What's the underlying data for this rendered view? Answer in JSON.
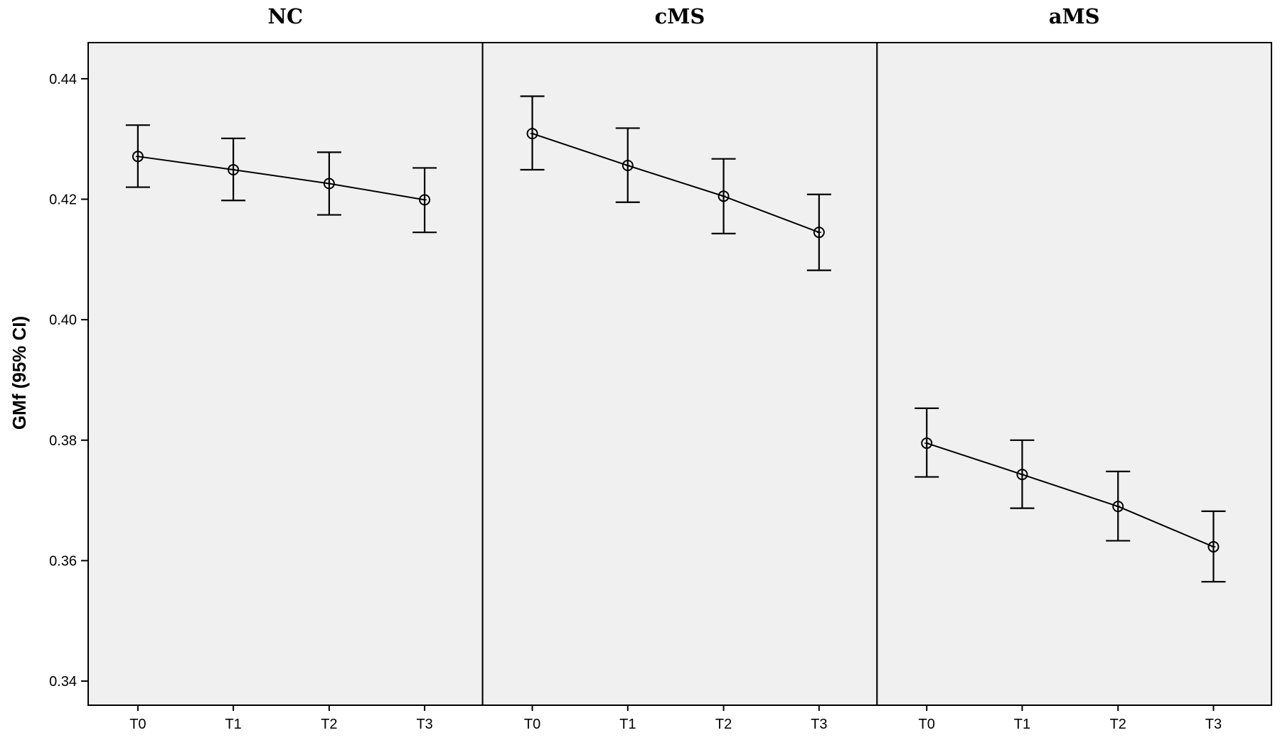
{
  "chart_data": {
    "type": "line",
    "ylabel": "GMf (95% CI)",
    "xlabel": "",
    "ylim": [
      0.336,
      0.446
    ],
    "yticks": [
      0.34,
      0.36,
      0.38,
      0.4,
      0.42,
      0.44
    ],
    "ytick_labels": [
      "0.34",
      "0.36",
      "0.38",
      "0.40",
      "0.42",
      "0.44"
    ],
    "categories": [
      "T0",
      "T1",
      "T2",
      "T3"
    ],
    "grid": false,
    "error_bars": "95% CI",
    "panels": [
      {
        "title": "NC",
        "values": [
          0.4271,
          0.4249,
          0.4226,
          0.4199
        ],
        "ci_low": [
          0.422,
          0.4198,
          0.4174,
          0.4145
        ],
        "ci_high": [
          0.4323,
          0.4301,
          0.4278,
          0.4252
        ]
      },
      {
        "title": "cMS",
        "values": [
          0.4309,
          0.4256,
          0.4205,
          0.4145
        ],
        "ci_low": [
          0.4249,
          0.4195,
          0.4143,
          0.4082
        ],
        "ci_high": [
          0.4371,
          0.4318,
          0.4267,
          0.4208
        ]
      },
      {
        "title": "aMS",
        "values": [
          0.3795,
          0.3743,
          0.369,
          0.3623
        ],
        "ci_low": [
          0.3739,
          0.3687,
          0.3633,
          0.3565
        ],
        "ci_high": [
          0.3853,
          0.38,
          0.3748,
          0.3682
        ]
      }
    ]
  }
}
